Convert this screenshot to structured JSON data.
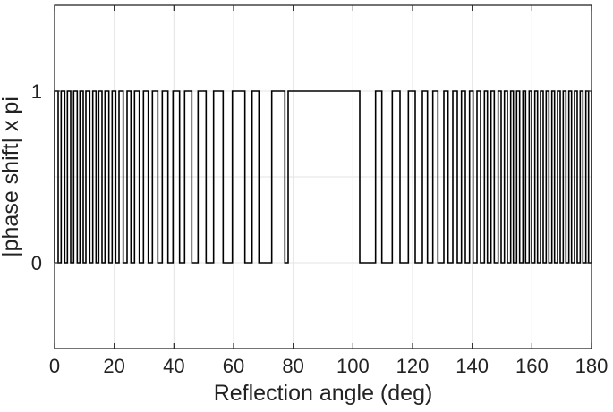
{
  "chart_data": {
    "type": "line",
    "title": "",
    "xlabel": "Reflection angle (deg)",
    "ylabel": "|phase shift| x pi",
    "xlim": [
      0,
      180
    ],
    "ylim": [
      -0.5,
      1.5
    ],
    "xticks": [
      0,
      20,
      40,
      60,
      80,
      100,
      120,
      140,
      160,
      180
    ],
    "xtick_labels": [
      "0",
      "20",
      "40",
      "60",
      "80",
      "100",
      "120",
      "140",
      "160",
      "180"
    ],
    "yticks": [
      0,
      1
    ],
    "ytick_labels": [
      "0",
      "1"
    ],
    "grid": true,
    "series": [
      {
        "style": "step",
        "color": "#000000",
        "transitions": [
          0.0,
          1.2,
          2.2,
          3.4,
          4.3,
          5.4,
          6.4,
          7.6,
          8.5,
          9.6,
          10.5,
          11.8,
          12.8,
          13.9,
          14.8,
          15.9,
          16.9,
          18.2,
          19.3,
          20.5,
          21.6,
          23.0,
          24.3,
          25.6,
          26.8,
          28.4,
          29.8,
          31.4,
          32.8,
          34.6,
          36.1,
          38.0,
          39.7,
          41.9,
          43.6,
          46.0,
          48.1,
          50.8,
          53.3,
          56.5,
          59.6,
          63.8,
          66.2,
          68.5,
          72.8,
          77.2,
          78.3,
          102.3,
          107.6,
          109.7,
          113.2,
          115.8,
          118.6,
          120.9,
          123.3,
          125.0,
          126.8,
          128.5,
          130.5,
          131.9,
          133.5,
          135.0,
          136.4,
          137.7,
          139.1,
          140.3,
          141.6,
          142.8,
          144.1,
          145.1,
          146.3,
          147.4,
          148.7,
          149.7,
          150.8,
          151.8,
          152.9,
          153.8,
          154.9,
          155.9,
          157.0,
          157.9,
          159.1,
          159.9,
          161.0,
          161.9,
          162.9,
          163.8,
          164.8,
          165.7,
          166.7,
          167.6,
          168.6,
          169.5,
          170.5,
          171.4,
          172.4,
          173.3,
          174.3,
          175.2,
          176.2,
          177.1,
          178.1,
          179.0,
          180.0
        ],
        "initial_level": 1
      }
    ]
  }
}
